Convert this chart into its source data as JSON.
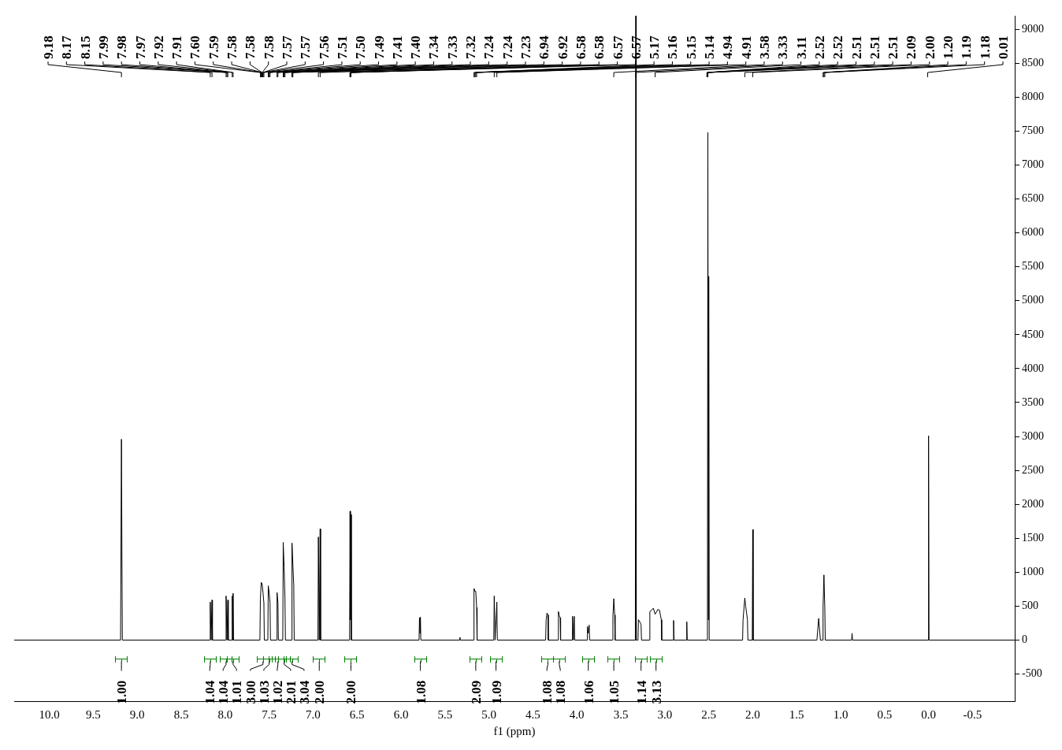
{
  "chart_data": {
    "type": "line",
    "xlabel": "f1 (ppm)",
    "xlim": [
      10.4,
      -0.98
    ],
    "ylim": [
      -900,
      9200
    ],
    "xticks": [
      {
        "value": 10,
        "label": "10.0"
      },
      {
        "value": 9.5,
        "label": "9.5"
      },
      {
        "value": 9,
        "label": "9.0"
      },
      {
        "value": 8.5,
        "label": "8.5"
      },
      {
        "value": 8,
        "label": "8.0"
      },
      {
        "value": 7.5,
        "label": "7.5"
      },
      {
        "value": 7,
        "label": "7.0"
      },
      {
        "value": 6.5,
        "label": "6.5"
      },
      {
        "value": 6,
        "label": "6.0"
      },
      {
        "value": 5.5,
        "label": "5.5"
      },
      {
        "value": 5,
        "label": "5.0"
      },
      {
        "value": 4.5,
        "label": "4.5"
      },
      {
        "value": 4,
        "label": "4.0"
      },
      {
        "value": 3.5,
        "label": "3.5"
      },
      {
        "value": 3,
        "label": "3.0"
      },
      {
        "value": 2.5,
        "label": "2.5"
      },
      {
        "value": 2,
        "label": "2.0"
      },
      {
        "value": 1.5,
        "label": "1.5"
      },
      {
        "value": 1,
        "label": "1.0"
      },
      {
        "value": 0.5,
        "label": "0.5"
      },
      {
        "value": 0,
        "label": "0.0"
      },
      {
        "value": -0.5,
        "label": "-0.5"
      }
    ],
    "yticks": [
      -500,
      0,
      500,
      1000,
      1500,
      2000,
      2500,
      3000,
      3500,
      4000,
      4500,
      5000,
      5500,
      6000,
      6500,
      7000,
      7500,
      8000,
      8500,
      9000
    ],
    "grid": false,
    "legend": false,
    "marker": "none",
    "line_style": "solid",
    "series": [
      {
        "color": "#000000",
        "x": [
          10.4,
          9.19,
          9.18,
          9.17,
          8.175,
          8.17,
          8.16,
          8.15,
          8.145,
          7.995,
          7.99,
          7.98,
          7.97,
          7.965,
          7.925,
          7.92,
          7.915,
          7.91,
          7.905,
          7.605,
          7.6,
          7.59,
          7.58,
          7.57,
          7.56,
          7.555,
          7.515,
          7.51,
          7.5,
          7.49,
          7.485,
          7.415,
          7.41,
          7.4,
          7.395,
          7.345,
          7.34,
          7.33,
          7.32,
          7.315,
          7.245,
          7.24,
          7.23,
          7.22,
          7.215,
          6.945,
          6.94,
          6.93,
          6.92,
          6.915,
          6.585,
          6.58,
          6.575,
          6.57,
          6.565,
          5.795,
          5.79,
          5.785,
          5.78,
          5.775,
          5.335,
          5.33,
          5.325,
          5.175,
          5.17,
          5.16,
          5.15,
          5.14,
          5.135,
          4.945,
          4.94,
          4.93,
          4.91,
          4.905,
          4.355,
          4.35,
          4.34,
          4.33,
          4.325,
          4.215,
          4.21,
          4.2,
          4.19,
          4.185,
          4.055,
          4.05,
          4.04,
          4.03,
          4.025,
          3.885,
          3.88,
          3.87,
          3.86,
          3.855,
          3.595,
          3.59,
          3.58,
          3.57,
          3.565,
          3.335,
          3.33,
          3.325,
          3.305,
          3.3,
          3.28,
          3.27,
          3.265,
          3.175,
          3.17,
          3.15,
          3.13,
          3.11,
          3.08,
          3.06,
          3.04,
          3.035,
          2.905,
          2.9,
          2.895,
          2.755,
          2.75,
          2.745,
          2.515,
          2.51,
          2.505,
          2.5,
          2.495,
          2.115,
          2.11,
          2.09,
          2.08,
          2.06,
          2.055,
          2.005,
          2.0,
          1.995,
          1.27,
          1.25,
          1.23,
          1.205,
          1.2,
          1.19,
          1.18,
          1.175,
          0.875,
          0.87,
          0.865,
          0.005,
          0.0,
          -0.005,
          -0.98
        ],
        "values": [
          0,
          0,
          2960,
          0,
          0,
          560,
          0,
          590,
          0,
          0,
          650,
          0,
          590,
          0,
          0,
          650,
          0,
          690,
          0,
          0,
          600,
          850,
          830,
          700,
          550,
          0,
          0,
          800,
          700,
          550,
          0,
          0,
          700,
          550,
          0,
          0,
          1440,
          1080,
          600,
          0,
          0,
          1430,
          1100,
          800,
          0,
          0,
          1520,
          0,
          1640,
          0,
          0,
          1900,
          300,
          1850,
          0,
          0,
          330,
          100,
          340,
          0,
          0,
          40,
          0,
          0,
          760,
          720,
          720,
          480,
          0,
          0,
          650,
          0,
          560,
          0,
          0,
          290,
          400,
          370,
          0,
          0,
          420,
          360,
          330,
          0,
          0,
          350,
          0,
          350,
          0,
          0,
          200,
          100,
          220,
          0,
          0,
          350,
          610,
          370,
          0,
          0,
          9200,
          0,
          0,
          300,
          260,
          230,
          0,
          0,
          420,
          440,
          470,
          380,
          450,
          440,
          300,
          0,
          0,
          290,
          0,
          0,
          270,
          0,
          0,
          7480,
          300,
          5360,
          0,
          0,
          300,
          620,
          500,
          300,
          0,
          0,
          1630,
          0,
          0,
          320,
          0,
          0,
          480,
          960,
          470,
          0,
          0,
          100,
          0,
          0,
          3010,
          0,
          0
        ]
      }
    ],
    "annotations": [
      {
        "text": "9.18",
        "x": 9.18
      },
      {
        "text": "8.17",
        "x": 8.17
      },
      {
        "text": "8.15",
        "x": 8.15
      },
      {
        "text": "7.99",
        "x": 7.99
      },
      {
        "text": "7.98",
        "x": 7.98
      },
      {
        "text": "7.97",
        "x": 7.97
      },
      {
        "text": "7.92",
        "x": 7.92
      },
      {
        "text": "7.91",
        "x": 7.91
      },
      {
        "text": "7.60",
        "x": 7.6
      },
      {
        "text": "7.59",
        "x": 7.59
      },
      {
        "text": "7.58",
        "x": 7.58
      },
      {
        "text": "7.58",
        "x": 7.58
      },
      {
        "text": "7.58",
        "x": 7.58
      },
      {
        "text": "7.57",
        "x": 7.57
      },
      {
        "text": "7.57",
        "x": 7.57
      },
      {
        "text": "7.56",
        "x": 7.56
      },
      {
        "text": "7.51",
        "x": 7.51
      },
      {
        "text": "7.50",
        "x": 7.5
      },
      {
        "text": "7.49",
        "x": 7.49
      },
      {
        "text": "7.41",
        "x": 7.41
      },
      {
        "text": "7.40",
        "x": 7.4
      },
      {
        "text": "7.34",
        "x": 7.34
      },
      {
        "text": "7.33",
        "x": 7.33
      },
      {
        "text": "7.32",
        "x": 7.32
      },
      {
        "text": "7.24",
        "x": 7.24
      },
      {
        "text": "7.24",
        "x": 7.24
      },
      {
        "text": "7.23",
        "x": 7.23
      },
      {
        "text": "6.94",
        "x": 6.94
      },
      {
        "text": "6.92",
        "x": 6.92
      },
      {
        "text": "6.58",
        "x": 6.58
      },
      {
        "text": "6.58",
        "x": 6.58
      },
      {
        "text": "6.57",
        "x": 6.57
      },
      {
        "text": "6.57",
        "x": 6.57
      },
      {
        "text": "5.17",
        "x": 5.17
      },
      {
        "text": "5.16",
        "x": 5.16
      },
      {
        "text": "5.15",
        "x": 5.15
      },
      {
        "text": "5.14",
        "x": 5.14
      },
      {
        "text": "4.94",
        "x": 4.94
      },
      {
        "text": "4.91",
        "x": 4.91
      },
      {
        "text": "3.58",
        "x": 3.58
      },
      {
        "text": "3.33",
        "x": 3.33
      },
      {
        "text": "3.11",
        "x": 3.11
      },
      {
        "text": "2.52",
        "x": 2.52
      },
      {
        "text": "2.52",
        "x": 2.52
      },
      {
        "text": "2.51",
        "x": 2.51
      },
      {
        "text": "2.51",
        "x": 2.51
      },
      {
        "text": "2.51",
        "x": 2.51
      },
      {
        "text": "2.09",
        "x": 2.09
      },
      {
        "text": "2.00",
        "x": 2.0
      },
      {
        "text": "1.20",
        "x": 1.2
      },
      {
        "text": "1.19",
        "x": 1.19
      },
      {
        "text": "1.18",
        "x": 1.18
      },
      {
        "text": "0.01",
        "x": 0.01
      },
      {
        "text": "1.00",
        "x": 9.18
      },
      {
        "text": "1.04",
        "x": 8.17
      },
      {
        "text": "1.04",
        "x": 7.99
      },
      {
        "text": "1.01",
        "x": 7.91
      },
      {
        "text": "3.00",
        "x": 7.57
      },
      {
        "text": "1.03",
        "x": 7.5
      },
      {
        "text": "1.02",
        "x": 7.4
      },
      {
        "text": "2.01",
        "x": 7.33
      },
      {
        "text": "3.04",
        "x": 7.24
      },
      {
        "text": "2.00",
        "x": 6.93
      },
      {
        "text": "2.00",
        "x": 6.57
      },
      {
        "text": "1.08",
        "x": 5.78
      },
      {
        "text": "2.09",
        "x": 5.15
      },
      {
        "text": "1.09",
        "x": 4.92
      },
      {
        "text": "1.08",
        "x": 4.33
      },
      {
        "text": "1.08",
        "x": 4.2
      },
      {
        "text": "1.06",
        "x": 3.87
      },
      {
        "text": "1.05",
        "x": 3.58
      },
      {
        "text": "1.14",
        "x": 3.27
      },
      {
        "text": "3.13",
        "x": 3.1
      }
    ]
  }
}
